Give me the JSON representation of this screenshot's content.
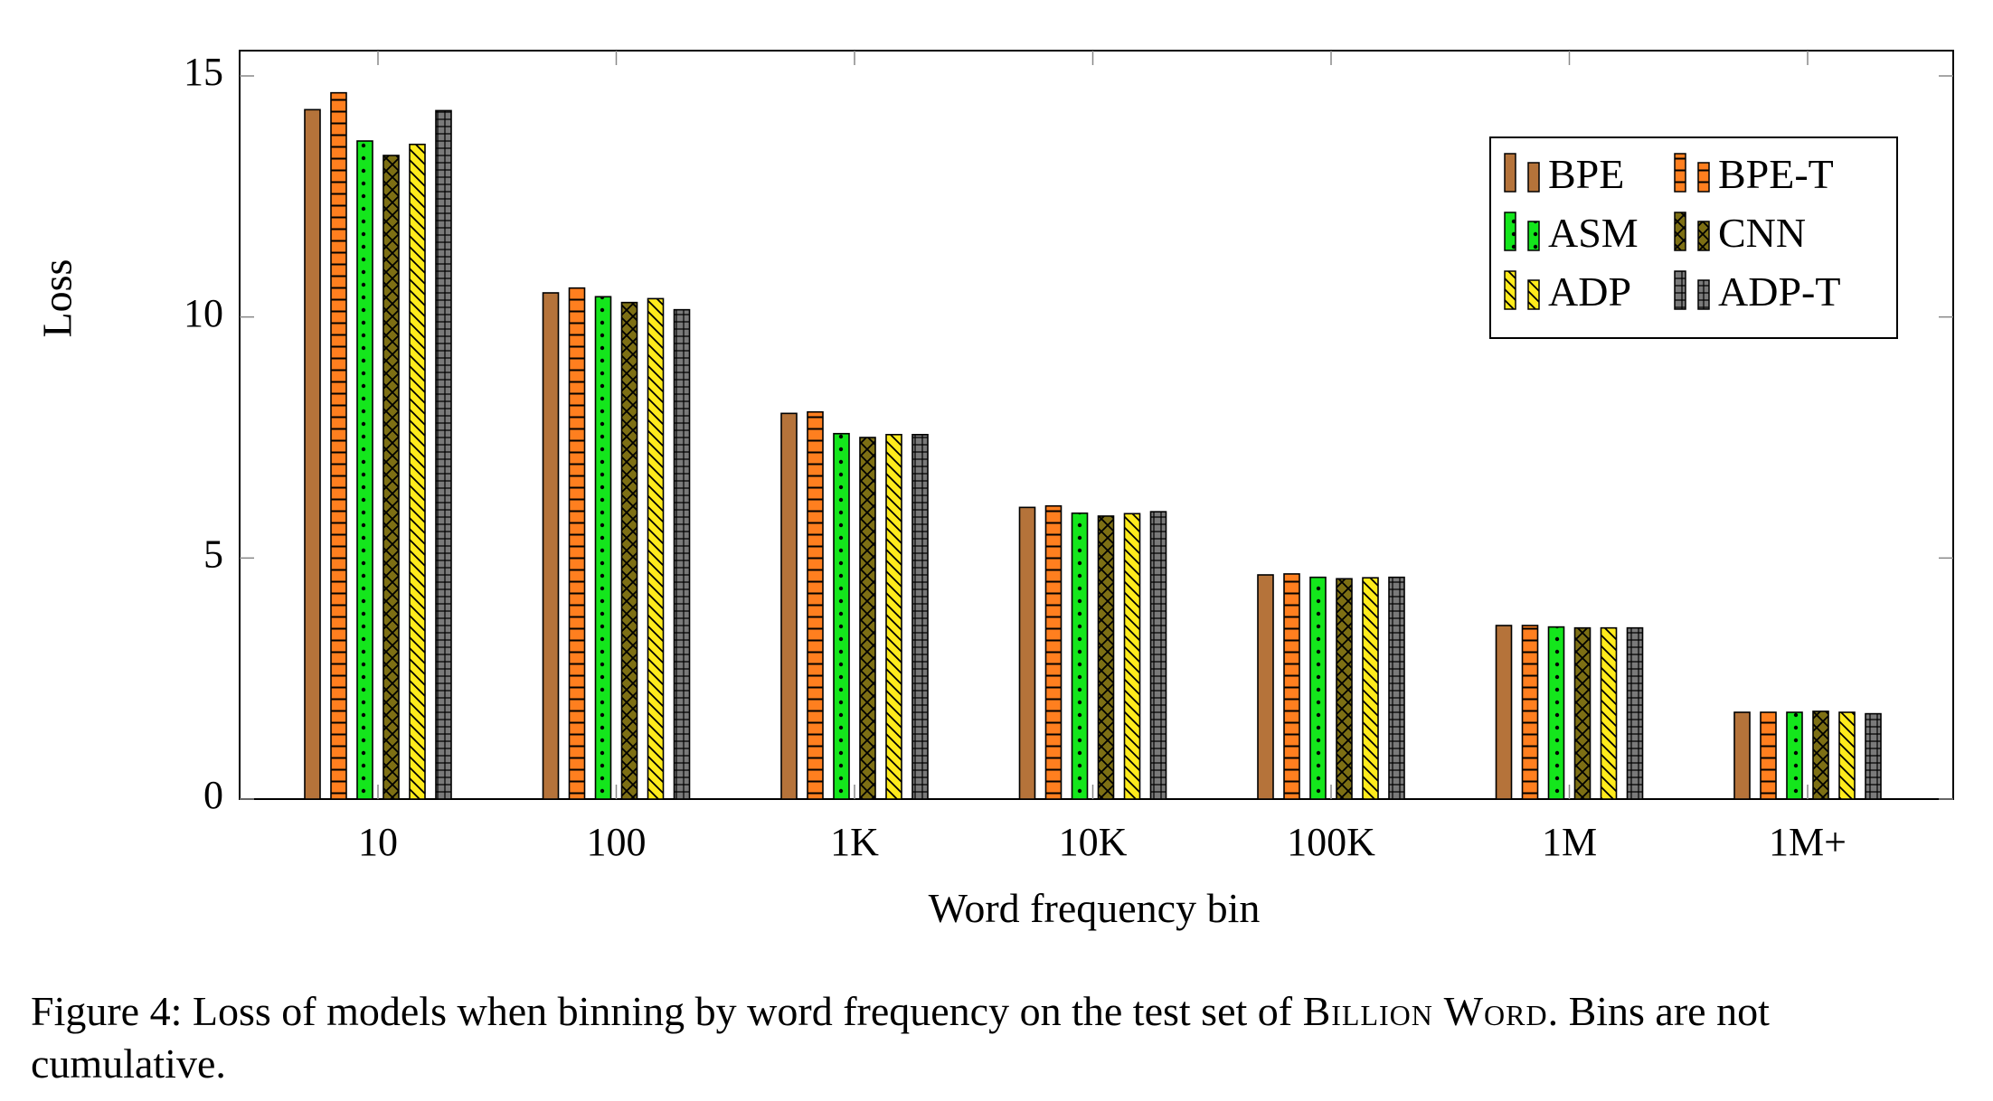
{
  "chart_data": {
    "type": "bar",
    "xlabel": "Word frequency bin",
    "ylabel": "Loss",
    "ylim": [
      0,
      16
    ],
    "yticks": [
      0,
      5,
      10,
      15
    ],
    "categories": [
      "10",
      "100",
      "1K",
      "10K",
      "100K",
      "1M",
      "1M+"
    ],
    "legend_position": "top-right",
    "grid": false,
    "series": [
      {
        "name": "BPE",
        "color": "#b5733a",
        "pattern": "solid",
        "values": [
          14.3,
          10.5,
          8.0,
          6.05,
          4.65,
          3.6,
          1.8
        ]
      },
      {
        "name": "BPE-T",
        "color": "#ff7f1f",
        "pattern": "horizontal",
        "values": [
          14.65,
          10.6,
          8.03,
          6.08,
          4.67,
          3.6,
          1.8
        ]
      },
      {
        "name": "ASM",
        "color": "#14e61c",
        "pattern": "dots",
        "values": [
          13.65,
          10.42,
          7.58,
          5.93,
          4.6,
          3.57,
          1.8
        ]
      },
      {
        "name": "CNN",
        "color": "#7d6f14",
        "pattern": "crosshatch",
        "values": [
          13.35,
          10.3,
          7.5,
          5.87,
          4.57,
          3.55,
          1.82
        ]
      },
      {
        "name": "ADP",
        "color": "#ffeb1c",
        "pattern": "diagonal",
        "values": [
          13.58,
          10.38,
          7.56,
          5.92,
          4.59,
          3.55,
          1.8
        ]
      },
      {
        "name": "ADP-T",
        "color": "#7a7a7a",
        "pattern": "grid",
        "values": [
          14.28,
          10.15,
          7.56,
          5.96,
          4.6,
          3.55,
          1.77
        ]
      }
    ]
  },
  "caption": {
    "prefix": "Figure 4: Loss of models when binning by word frequency on the test set of",
    "dataset": "Billion Word",
    "suffix": ". Bins are not cumulative."
  }
}
